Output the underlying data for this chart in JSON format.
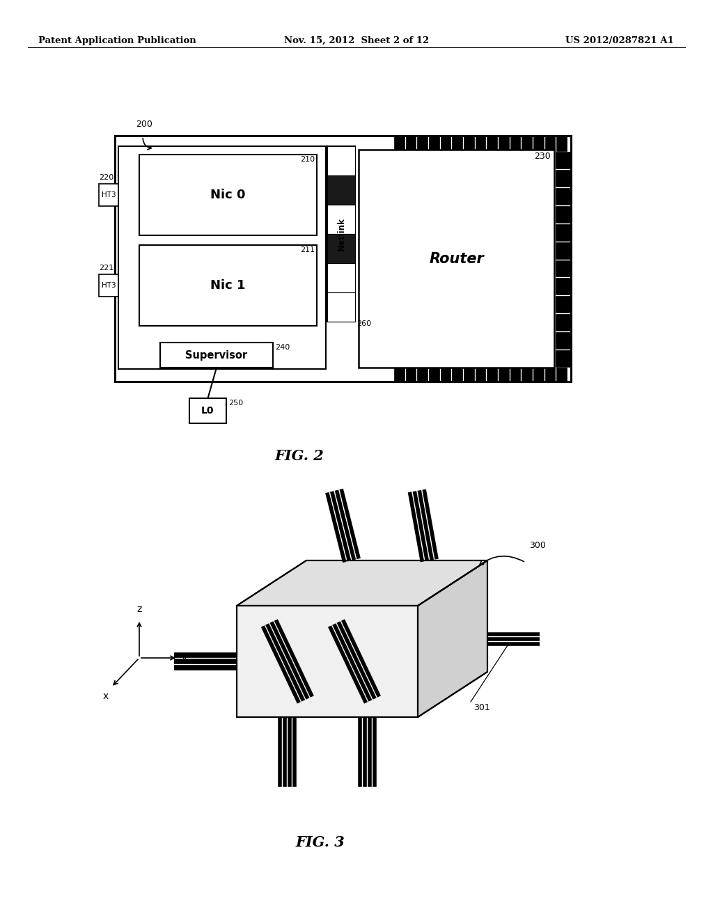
{
  "bg_color": "#ffffff",
  "header_left": "Patent Application Publication",
  "header_center": "Nov. 15, 2012  Sheet 2 of 12",
  "header_right": "US 2012/0287821 A1",
  "fig2_label": "FIG. 2",
  "fig3_label": "FIG. 3"
}
